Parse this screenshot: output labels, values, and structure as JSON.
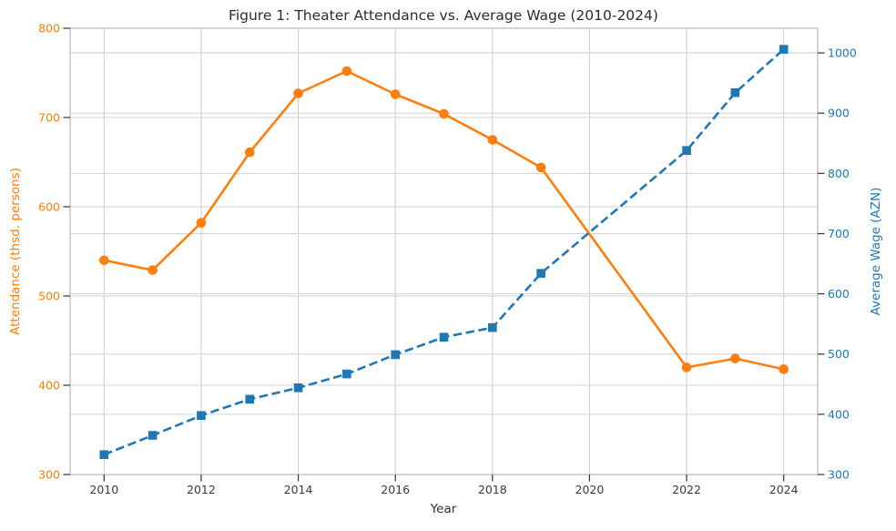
{
  "chart_data": {
    "type": "line",
    "title": "Figure 1: Theater Attendance vs. Average Wage (2010-2024)",
    "xlabel": "Year",
    "grid": true,
    "background": "#ffffff",
    "grid_color": "#d2d2d2",
    "spine_color": "#c2c2c2",
    "tick_mark_color": "#333333",
    "x_tick_label_color": "#3a3a3a",
    "x": [
      2010,
      2011,
      2012,
      2013,
      2014,
      2015,
      2016,
      2017,
      2018,
      2019,
      2022,
      2023,
      2024
    ],
    "x_ticks": [
      2010,
      2012,
      2014,
      2016,
      2018,
      2020,
      2022,
      2024
    ],
    "xlim": [
      2009.3,
      2024.7
    ],
    "axes": {
      "left": {
        "label": "Attendance (thsd. persons)",
        "color": "#ff7f0e",
        "lim": [
          300,
          800
        ],
        "ticks": [
          300,
          400,
          500,
          600,
          700,
          800
        ]
      },
      "right": {
        "label": "Average Wage (AZN)",
        "color": "#1f77b4",
        "lim": [
          300,
          1041
        ],
        "ticks": [
          300,
          400,
          500,
          600,
          700,
          800,
          900,
          1000
        ]
      }
    },
    "series": [
      {
        "id": "attendance",
        "name": "Attendance (thsd. persons)",
        "axis": "left",
        "color": "#ff7f0e",
        "line_style": "solid",
        "marker": "circle",
        "values": [
          540,
          529,
          582,
          661,
          727,
          752,
          726,
          704,
          675,
          644,
          420,
          430,
          418
        ]
      },
      {
        "id": "wage",
        "name": "Average Wage (AZN)",
        "axis": "right",
        "color": "#1f77b4",
        "line_style": "dashed",
        "marker": "square",
        "values": [
          333,
          365,
          398,
          425,
          444,
          467,
          499,
          528,
          544,
          634,
          838,
          934,
          1006
        ]
      }
    ]
  }
}
